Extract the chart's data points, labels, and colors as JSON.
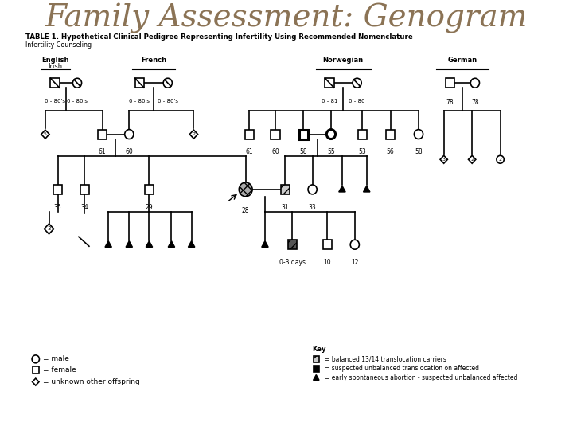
{
  "title": "Family Assessment: Genogram",
  "title_color": "#8B7355",
  "title_fontsize": 28,
  "table_title": "TABLE 1. Hypothetical Clinical Pedigree Representing Infertility Using Recommended Nomenclature",
  "subtitle": "Infertility Counseling",
  "background_color": "#ffffff"
}
